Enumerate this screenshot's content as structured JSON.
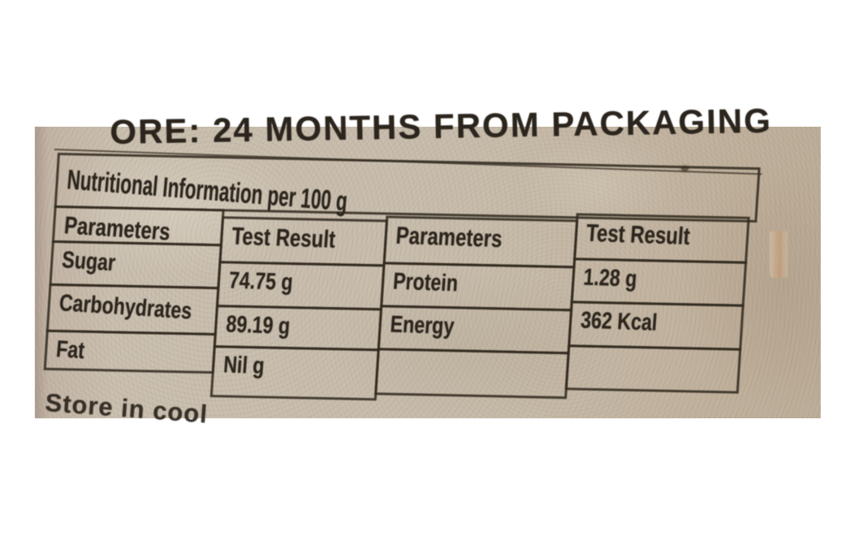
{
  "photo": {
    "paper_color": "#c6bbaa",
    "ink_color": "#2b251d",
    "line_color": "#3a342a",
    "top_text": "ORE: 24 MONTHS FROM PACKAGING",
    "bottom_text": "Store in cool",
    "nutrition": {
      "title": "Nutritional Information per 100 g",
      "columns": [
        {
          "header": "Parameters",
          "cells": [
            "Sugar",
            "Carbohydrates",
            "Fat"
          ]
        },
        {
          "header": "Test Result",
          "cells": [
            "74.75 g",
            "89.19 g",
            "Nil g"
          ]
        },
        {
          "header": "Parameters",
          "cells": [
            "Protein",
            "Energy",
            ""
          ]
        },
        {
          "header": "Test Result",
          "cells": [
            "1.28 g",
            "362 Kcal",
            ""
          ]
        }
      ]
    }
  }
}
